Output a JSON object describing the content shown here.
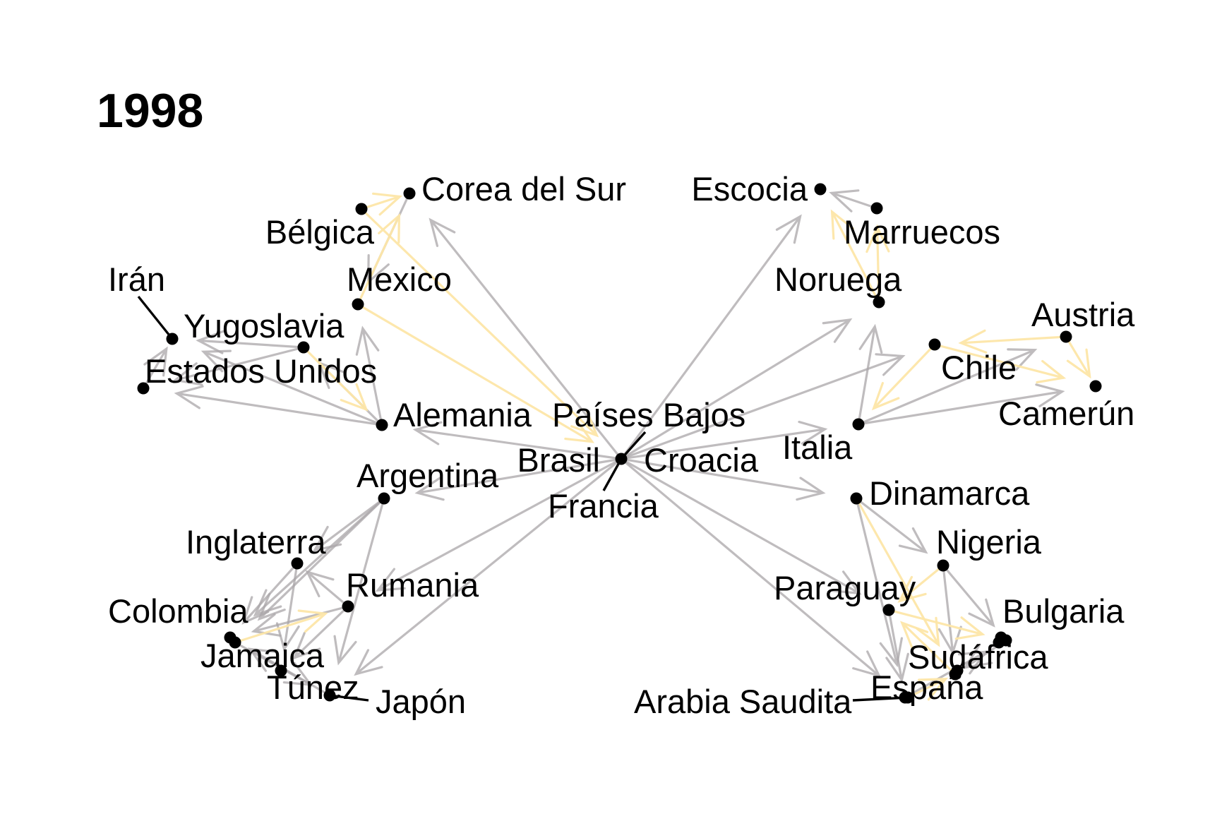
{
  "title": "1998",
  "colors": {
    "edge_gray": "#a9a6a8",
    "edge_yellow": "#fde6a8",
    "node": "#000000",
    "text": "#000000"
  },
  "nodes": [
    {
      "id": "corea_del_sur",
      "label": "Corea del Sur"
    },
    {
      "id": "belgica",
      "label": "Bélgica"
    },
    {
      "id": "escocia",
      "label": "Escocia"
    },
    {
      "id": "marruecos",
      "label": "Marruecos"
    },
    {
      "id": "iran",
      "label": "Irán"
    },
    {
      "id": "mexico",
      "label": "Mexico"
    },
    {
      "id": "noruega",
      "label": "Noruega"
    },
    {
      "id": "yugoslavia",
      "label": "Yugoslavia"
    },
    {
      "id": "austria",
      "label": "Austria"
    },
    {
      "id": "estados_unidos",
      "label": "Estados Unidos"
    },
    {
      "id": "chile",
      "label": "Chile"
    },
    {
      "id": "camerun",
      "label": "Camerún"
    },
    {
      "id": "alemania",
      "label": "Alemania"
    },
    {
      "id": "paises_bajos",
      "label": "Países Bajos"
    },
    {
      "id": "italia",
      "label": "Italia"
    },
    {
      "id": "brasil",
      "label": "Brasil"
    },
    {
      "id": "croacia",
      "label": "Croacia"
    },
    {
      "id": "argentina",
      "label": "Argentina"
    },
    {
      "id": "dinamarca",
      "label": "Dinamarca"
    },
    {
      "id": "francia",
      "label": "Francia"
    },
    {
      "id": "inglaterra",
      "label": "Inglaterra"
    },
    {
      "id": "nigeria",
      "label": "Nigeria"
    },
    {
      "id": "rumania",
      "label": "Rumania"
    },
    {
      "id": "paraguay",
      "label": "Paraguay"
    },
    {
      "id": "colombia",
      "label": "Colombia"
    },
    {
      "id": "bulgaria",
      "label": "Bulgaria"
    },
    {
      "id": "jamaica",
      "label": "Jamaica"
    },
    {
      "id": "sudafrica",
      "label": "Sudáfrica"
    },
    {
      "id": "tunez",
      "label": "Túnez"
    },
    {
      "id": "espana",
      "label": "España"
    },
    {
      "id": "japon",
      "label": "Japón"
    },
    {
      "id": "arabia_saudita",
      "label": "Arabia Saudita"
    }
  ],
  "edges": [
    {
      "from": "francia",
      "to": "corea_del_sur",
      "color": "gray"
    },
    {
      "from": "francia",
      "to": "escocia",
      "color": "gray"
    },
    {
      "from": "francia",
      "to": "noruega",
      "color": "gray"
    },
    {
      "from": "francia",
      "to": "chile",
      "color": "gray"
    },
    {
      "from": "francia",
      "to": "italia",
      "color": "gray"
    },
    {
      "from": "francia",
      "to": "dinamarca",
      "color": "gray"
    },
    {
      "from": "francia",
      "to": "alemania",
      "color": "gray"
    },
    {
      "from": "francia",
      "to": "argentina",
      "color": "gray"
    },
    {
      "from": "francia",
      "to": "paraguay",
      "color": "gray"
    },
    {
      "from": "francia",
      "to": "espana",
      "color": "gray"
    },
    {
      "from": "francia",
      "to": "rumania",
      "color": "gray"
    },
    {
      "from": "francia",
      "to": "japon",
      "color": "gray"
    },
    {
      "from": "mexico",
      "to": "francia",
      "color": "yellow"
    },
    {
      "from": "belgica",
      "to": "francia",
      "color": "yellow"
    },
    {
      "from": "corea_del_sur",
      "to": "mexico",
      "color": "gray"
    },
    {
      "from": "mexico",
      "to": "corea_del_sur",
      "color": "yellow"
    },
    {
      "from": "belgica",
      "to": "corea_del_sur",
      "color": "yellow"
    },
    {
      "from": "alemania",
      "to": "mexico",
      "color": "gray"
    },
    {
      "from": "alemania",
      "to": "estados_unidos",
      "color": "gray"
    },
    {
      "from": "alemania",
      "to": "yugoslavia",
      "color": "gray"
    },
    {
      "from": "alemania",
      "to": "iran",
      "color": "gray"
    },
    {
      "from": "yugoslavia",
      "to": "estados_unidos",
      "color": "gray"
    },
    {
      "from": "yugoslavia",
      "to": "iran",
      "color": "gray"
    },
    {
      "from": "yugoslavia",
      "to": "alemania",
      "color": "yellow"
    },
    {
      "from": "estados_unidos",
      "to": "iran",
      "color": "gray"
    },
    {
      "from": "marruecos",
      "to": "escocia",
      "color": "gray"
    },
    {
      "from": "noruega",
      "to": "escocia",
      "color": "yellow"
    },
    {
      "from": "noruega",
      "to": "marruecos",
      "color": "yellow"
    },
    {
      "from": "italia",
      "to": "noruega",
      "color": "gray"
    },
    {
      "from": "italia",
      "to": "austria",
      "color": "gray"
    },
    {
      "from": "italia",
      "to": "camerun",
      "color": "gray"
    },
    {
      "from": "austria",
      "to": "chile",
      "color": "yellow"
    },
    {
      "from": "chile",
      "to": "camerun",
      "color": "yellow"
    },
    {
      "from": "austria",
      "to": "camerun",
      "color": "yellow"
    },
    {
      "from": "chile",
      "to": "italia",
      "color": "yellow"
    },
    {
      "from": "argentina",
      "to": "inglaterra",
      "color": "gray"
    },
    {
      "from": "argentina",
      "to": "colombia",
      "color": "gray"
    },
    {
      "from": "argentina",
      "to": "jamaica",
      "color": "gray"
    },
    {
      "from": "argentina",
      "to": "japon",
      "color": "gray"
    },
    {
      "from": "inglaterra",
      "to": "colombia",
      "color": "gray"
    },
    {
      "from": "inglaterra",
      "to": "tunez",
      "color": "gray"
    },
    {
      "from": "rumania",
      "to": "inglaterra",
      "color": "gray"
    },
    {
      "from": "rumania",
      "to": "colombia",
      "color": "gray"
    },
    {
      "from": "rumania",
      "to": "tunez",
      "color": "gray"
    },
    {
      "from": "jamaica",
      "to": "rumania",
      "color": "yellow"
    },
    {
      "from": "japon",
      "to": "colombia",
      "color": "gray"
    },
    {
      "from": "jamaica",
      "to": "japon",
      "color": "gray"
    },
    {
      "from": "dinamarca",
      "to": "nigeria",
      "color": "gray"
    },
    {
      "from": "dinamarca",
      "to": "sudafrica",
      "color": "yellow"
    },
    {
      "from": "dinamarca",
      "to": "espana",
      "color": "gray"
    },
    {
      "from": "nigeria",
      "to": "bulgaria",
      "color": "gray"
    },
    {
      "from": "nigeria",
      "to": "paraguay",
      "color": "yellow"
    },
    {
      "from": "nigeria",
      "to": "sudafrica",
      "color": "gray"
    },
    {
      "from": "paraguay",
      "to": "bulgaria",
      "color": "yellow"
    },
    {
      "from": "paraguay",
      "to": "espana",
      "color": "gray"
    },
    {
      "from": "sudafrica",
      "to": "paraguay",
      "color": "yellow"
    },
    {
      "from": "espana",
      "to": "bulgaria",
      "color": "gray"
    },
    {
      "from": "bulgaria",
      "to": "sudafrica",
      "color": "gray"
    },
    {
      "from": "arabia_saudita",
      "to": "sudafrica",
      "color": "yellow"
    }
  ]
}
